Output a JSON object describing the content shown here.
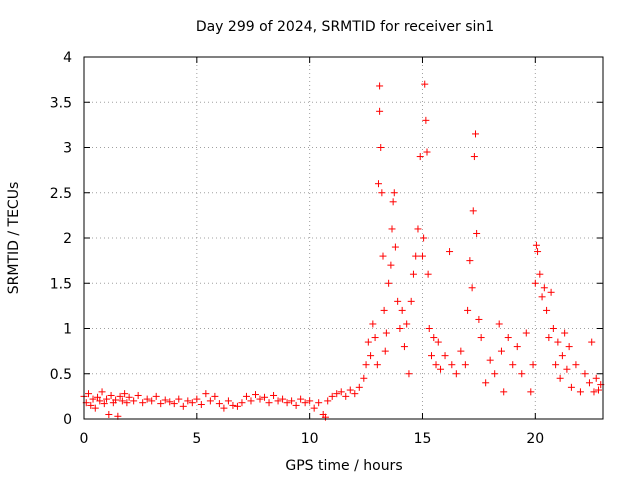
{
  "chart_data": {
    "type": "scatter",
    "title": "Day 299 of 2024, SRMTID for receiver sin1",
    "xlabel": "GPS time / hours",
    "ylabel": "SRMTID / TECUs",
    "xlim": [
      0,
      23
    ],
    "ylim": [
      0,
      4
    ],
    "x_ticks": [
      0,
      5,
      10,
      15,
      20
    ],
    "y_ticks": [
      0,
      0.5,
      1,
      1.5,
      2,
      2.5,
      3,
      3.5,
      4
    ],
    "x_tick_labels": [
      "0",
      "5",
      "10",
      "15",
      "20"
    ],
    "y_tick_labels": [
      "0",
      "0.5",
      "1",
      "1.5",
      "2",
      "2.5",
      "3",
      "3.5",
      "4"
    ],
    "grid": true,
    "marker": "+",
    "marker_color": "#ff0000",
    "series": [
      {
        "name": "sin1",
        "points": [
          [
            0.0,
            0.25
          ],
          [
            0.1,
            0.18
          ],
          [
            0.2,
            0.28
          ],
          [
            0.3,
            0.15
          ],
          [
            0.4,
            0.22
          ],
          [
            0.5,
            0.12
          ],
          [
            0.6,
            0.24
          ],
          [
            0.7,
            0.2
          ],
          [
            0.8,
            0.3
          ],
          [
            0.9,
            0.17
          ],
          [
            1.0,
            0.22
          ],
          [
            1.1,
            0.05
          ],
          [
            1.2,
            0.26
          ],
          [
            1.3,
            0.18
          ],
          [
            1.4,
            0.21
          ],
          [
            1.5,
            0.03
          ],
          [
            1.6,
            0.25
          ],
          [
            1.7,
            0.2
          ],
          [
            1.8,
            0.28
          ],
          [
            1.9,
            0.18
          ],
          [
            2.0,
            0.24
          ],
          [
            2.2,
            0.2
          ],
          [
            2.4,
            0.26
          ],
          [
            2.6,
            0.18
          ],
          [
            2.8,
            0.22
          ],
          [
            3.0,
            0.2
          ],
          [
            3.2,
            0.25
          ],
          [
            3.4,
            0.17
          ],
          [
            3.6,
            0.21
          ],
          [
            3.8,
            0.19
          ],
          [
            4.0,
            0.17
          ],
          [
            4.2,
            0.22
          ],
          [
            4.4,
            0.14
          ],
          [
            4.6,
            0.2
          ],
          [
            4.8,
            0.18
          ],
          [
            5.0,
            0.22
          ],
          [
            5.2,
            0.16
          ],
          [
            5.4,
            0.28
          ],
          [
            5.6,
            0.2
          ],
          [
            5.8,
            0.25
          ],
          [
            6.0,
            0.17
          ],
          [
            6.2,
            0.12
          ],
          [
            6.4,
            0.2
          ],
          [
            6.6,
            0.15
          ],
          [
            6.8,
            0.14
          ],
          [
            7.0,
            0.18
          ],
          [
            7.2,
            0.25
          ],
          [
            7.4,
            0.2
          ],
          [
            7.6,
            0.27
          ],
          [
            7.8,
            0.22
          ],
          [
            8.0,
            0.24
          ],
          [
            8.2,
            0.18
          ],
          [
            8.4,
            0.26
          ],
          [
            8.6,
            0.2
          ],
          [
            8.8,
            0.22
          ],
          [
            9.0,
            0.18
          ],
          [
            9.2,
            0.2
          ],
          [
            9.4,
            0.15
          ],
          [
            9.6,
            0.22
          ],
          [
            9.8,
            0.18
          ],
          [
            10.0,
            0.2
          ],
          [
            10.2,
            0.12
          ],
          [
            10.4,
            0.18
          ],
          [
            10.6,
            0.05
          ],
          [
            10.7,
            0.02
          ],
          [
            10.8,
            0.2
          ],
          [
            11.0,
            0.25
          ],
          [
            11.2,
            0.28
          ],
          [
            11.4,
            0.3
          ],
          [
            11.6,
            0.25
          ],
          [
            11.8,
            0.32
          ],
          [
            12.0,
            0.28
          ],
          [
            12.2,
            0.35
          ],
          [
            12.4,
            0.45
          ],
          [
            12.5,
            0.6
          ],
          [
            12.6,
            0.85
          ],
          [
            12.7,
            0.7
          ],
          [
            12.8,
            1.05
          ],
          [
            12.9,
            0.9
          ],
          [
            13.0,
            0.6
          ],
          [
            13.05,
            2.6
          ],
          [
            13.1,
            3.4
          ],
          [
            13.1,
            3.68
          ],
          [
            13.15,
            3.0
          ],
          [
            13.2,
            2.5
          ],
          [
            13.25,
            1.8
          ],
          [
            13.3,
            1.2
          ],
          [
            13.35,
            0.75
          ],
          [
            13.4,
            0.95
          ],
          [
            13.5,
            1.5
          ],
          [
            13.6,
            1.7
          ],
          [
            13.65,
            2.1
          ],
          [
            13.7,
            2.4
          ],
          [
            13.75,
            2.5
          ],
          [
            13.8,
            1.9
          ],
          [
            13.9,
            1.3
          ],
          [
            14.0,
            1.0
          ],
          [
            14.1,
            1.2
          ],
          [
            14.2,
            0.8
          ],
          [
            14.3,
            1.05
          ],
          [
            14.4,
            0.5
          ],
          [
            14.5,
            1.3
          ],
          [
            14.6,
            1.6
          ],
          [
            14.7,
            1.8
          ],
          [
            14.8,
            2.1
          ],
          [
            14.9,
            2.9
          ],
          [
            15.0,
            1.8
          ],
          [
            15.05,
            2.0
          ],
          [
            15.1,
            3.7
          ],
          [
            15.15,
            3.3
          ],
          [
            15.2,
            2.95
          ],
          [
            15.25,
            1.6
          ],
          [
            15.3,
            1.0
          ],
          [
            15.4,
            0.7
          ],
          [
            15.5,
            0.9
          ],
          [
            15.6,
            0.6
          ],
          [
            15.7,
            0.85
          ],
          [
            15.8,
            0.55
          ],
          [
            16.0,
            0.7
          ],
          [
            16.2,
            1.85
          ],
          [
            16.3,
            0.6
          ],
          [
            16.5,
            0.5
          ],
          [
            16.7,
            0.75
          ],
          [
            16.9,
            0.6
          ],
          [
            17.0,
            1.2
          ],
          [
            17.1,
            1.75
          ],
          [
            17.2,
            1.45
          ],
          [
            17.25,
            2.3
          ],
          [
            17.3,
            2.9
          ],
          [
            17.35,
            3.15
          ],
          [
            17.4,
            2.05
          ],
          [
            17.5,
            1.1
          ],
          [
            17.6,
            0.9
          ],
          [
            17.8,
            0.4
          ],
          [
            18.0,
            0.65
          ],
          [
            18.2,
            0.5
          ],
          [
            18.4,
            1.05
          ],
          [
            18.5,
            0.75
          ],
          [
            18.6,
            0.3
          ],
          [
            18.8,
            0.9
          ],
          [
            19.0,
            0.6
          ],
          [
            19.2,
            0.8
          ],
          [
            19.4,
            0.5
          ],
          [
            19.6,
            0.95
          ],
          [
            19.8,
            0.3
          ],
          [
            19.9,
            0.6
          ],
          [
            20.0,
            1.5
          ],
          [
            20.05,
            1.92
          ],
          [
            20.1,
            1.85
          ],
          [
            20.2,
            1.6
          ],
          [
            20.3,
            1.35
          ],
          [
            20.4,
            1.45
          ],
          [
            20.5,
            1.2
          ],
          [
            20.6,
            0.9
          ],
          [
            20.7,
            1.4
          ],
          [
            20.8,
            1.0
          ],
          [
            20.9,
            0.6
          ],
          [
            21.0,
            0.85
          ],
          [
            21.1,
            0.45
          ],
          [
            21.2,
            0.7
          ],
          [
            21.3,
            0.95
          ],
          [
            21.4,
            0.55
          ],
          [
            21.5,
            0.8
          ],
          [
            21.6,
            0.35
          ],
          [
            21.8,
            0.6
          ],
          [
            22.0,
            0.3
          ],
          [
            22.2,
            0.5
          ],
          [
            22.4,
            0.4
          ],
          [
            22.5,
            0.85
          ],
          [
            22.6,
            0.3
          ],
          [
            22.7,
            0.45
          ],
          [
            22.8,
            0.32
          ],
          [
            22.9,
            0.38
          ]
        ]
      }
    ]
  }
}
